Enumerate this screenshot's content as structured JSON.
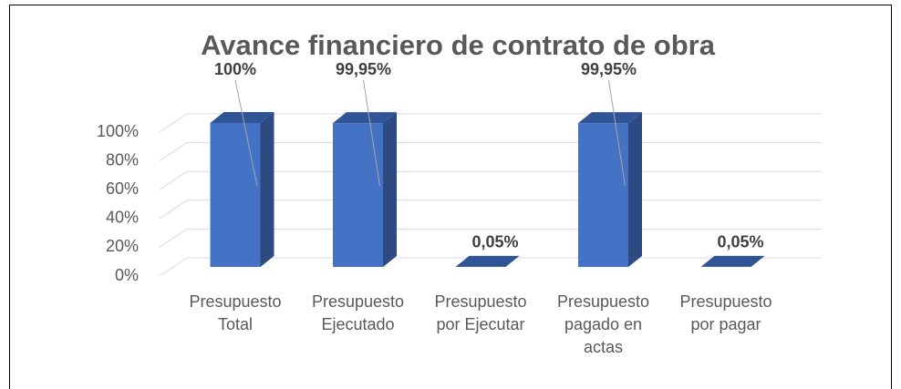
{
  "chart_data": {
    "type": "bar3d",
    "title": "Avance financiero de contrato de obra",
    "categories": [
      "Presupuesto Total",
      "Presupuesto Ejecutado",
      "Presupuesto por Ejecutar",
      "Presupuesto pagado en actas",
      "Presupuesto por pagar"
    ],
    "values": [
      100,
      99.95,
      0.05,
      99.95,
      0.05
    ],
    "value_labels": [
      "100%",
      "99,95%",
      "0,05%",
      "99,95%",
      "0,05%"
    ],
    "color": "#4472c4",
    "ylim": [
      0,
      100
    ],
    "yticks": [
      {
        "value": 0,
        "label": "0%"
      },
      {
        "value": 20,
        "label": "20%"
      },
      {
        "value": 40,
        "label": "40%"
      },
      {
        "value": 60,
        "label": "60%"
      },
      {
        "value": 80,
        "label": "80%"
      },
      {
        "value": 100,
        "label": "100%"
      }
    ],
    "grid": true
  }
}
